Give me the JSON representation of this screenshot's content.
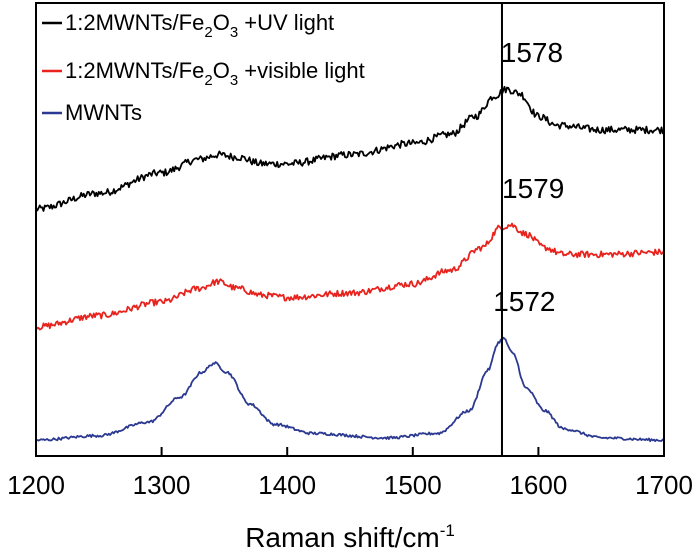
{
  "chart_data": {
    "type": "line",
    "title": "",
    "xlabel": "Raman shift/cm",
    "xlabel_superscript": "-1",
    "ylabel": "",
    "xlim": [
      1200,
      1700
    ],
    "ylim": [
      0,
      1
    ],
    "x_ticks": [
      1200,
      1300,
      1400,
      1500,
      1600,
      1700
    ],
    "y_ticks": [],
    "reference_line_x": 1571,
    "series": [
      {
        "name": "1:2MWNTs/Fe2O3+UV light",
        "legend_parts": [
          "1:2MWNTs/Fe",
          "2",
          "O",
          "3",
          " +UV light"
        ],
        "color": "#000000",
        "points": [
          [
            1200,
            0.545
          ],
          [
            1250,
            0.58
          ],
          [
            1300,
            0.625
          ],
          [
            1330,
            0.655
          ],
          [
            1345,
            0.665
          ],
          [
            1360,
            0.66
          ],
          [
            1380,
            0.645
          ],
          [
            1400,
            0.645
          ],
          [
            1450,
            0.665
          ],
          [
            1500,
            0.69
          ],
          [
            1530,
            0.71
          ],
          [
            1550,
            0.75
          ],
          [
            1565,
            0.795
          ],
          [
            1575,
            0.81
          ],
          [
            1585,
            0.8
          ],
          [
            1600,
            0.75
          ],
          [
            1615,
            0.73
          ],
          [
            1650,
            0.72
          ],
          [
            1700,
            0.72
          ]
        ]
      },
      {
        "name": "1:2MWNTs/Fe2O3+visible light",
        "legend_parts": [
          "1:2MWNTs/Fe",
          "2",
          "O",
          "3",
          " +visible light"
        ],
        "color": "#e8231e",
        "points": [
          [
            1200,
            0.285
          ],
          [
            1250,
            0.31
          ],
          [
            1300,
            0.34
          ],
          [
            1330,
            0.37
          ],
          [
            1345,
            0.385
          ],
          [
            1360,
            0.37
          ],
          [
            1380,
            0.355
          ],
          [
            1400,
            0.35
          ],
          [
            1450,
            0.36
          ],
          [
            1500,
            0.38
          ],
          [
            1530,
            0.41
          ],
          [
            1555,
            0.46
          ],
          [
            1570,
            0.505
          ],
          [
            1578,
            0.51
          ],
          [
            1590,
            0.49
          ],
          [
            1605,
            0.46
          ],
          [
            1620,
            0.445
          ],
          [
            1650,
            0.445
          ],
          [
            1700,
            0.45
          ]
        ]
      },
      {
        "name": "MWNTs",
        "legend_parts": [
          "MWNTs"
        ],
        "color": "#2b3990",
        "points": [
          [
            1200,
            0.035
          ],
          [
            1250,
            0.045
          ],
          [
            1290,
            0.075
          ],
          [
            1315,
            0.13
          ],
          [
            1332,
            0.185
          ],
          [
            1342,
            0.205
          ],
          [
            1352,
            0.185
          ],
          [
            1370,
            0.115
          ],
          [
            1390,
            0.07
          ],
          [
            1420,
            0.05
          ],
          [
            1480,
            0.04
          ],
          [
            1520,
            0.05
          ],
          [
            1545,
            0.1
          ],
          [
            1560,
            0.19
          ],
          [
            1568,
            0.25
          ],
          [
            1572,
            0.26
          ],
          [
            1580,
            0.225
          ],
          [
            1590,
            0.15
          ],
          [
            1605,
            0.1
          ],
          [
            1620,
            0.06
          ],
          [
            1650,
            0.04
          ],
          [
            1700,
            0.035
          ]
        ]
      }
    ],
    "annotations": [
      {
        "text": "1578",
        "x": 1578,
        "y": 0.87
      },
      {
        "text": "1579",
        "x": 1579,
        "y": 0.57
      },
      {
        "text": "1572",
        "x": 1572,
        "y": 0.32
      }
    ]
  }
}
